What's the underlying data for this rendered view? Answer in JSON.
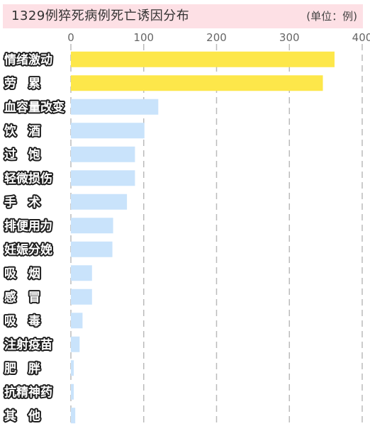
{
  "header": {
    "title": "1329例猝死病例死亡诱因分布",
    "unit": "(单位：例)"
  },
  "colors": {
    "highlight_bar": "#fde74a",
    "normal_bar": "#c9e3fb",
    "header_bg": "#fde0e5",
    "gridline": "#bbbbbb"
  },
  "chart_data": {
    "type": "bar",
    "orientation": "horizontal",
    "title": "1329例猝死病例死亡诱因分布",
    "unit": "(单位：例)",
    "xlim": [
      0,
      400
    ],
    "x_ticks": [
      "0",
      "100",
      "200",
      "300",
      "400"
    ],
    "grid": true,
    "categories": [
      "情绪激动",
      "劳　累",
      "血容量改变",
      "饮　酒",
      "过　饱",
      "轻微损伤",
      "手　术",
      "排便用力",
      "妊娠分娩",
      "吸　烟",
      "感　冒",
      "吸　毒",
      "注射疫苗",
      "肥　胖",
      "抗精神药",
      "其　他"
    ],
    "values": [
      362,
      346,
      120,
      101,
      88,
      88,
      77,
      58,
      57,
      29,
      29,
      16,
      12,
      4,
      4,
      6
    ],
    "highlight": [
      true,
      true,
      false,
      false,
      false,
      false,
      false,
      false,
      false,
      false,
      false,
      false,
      false,
      false,
      false,
      false
    ]
  }
}
